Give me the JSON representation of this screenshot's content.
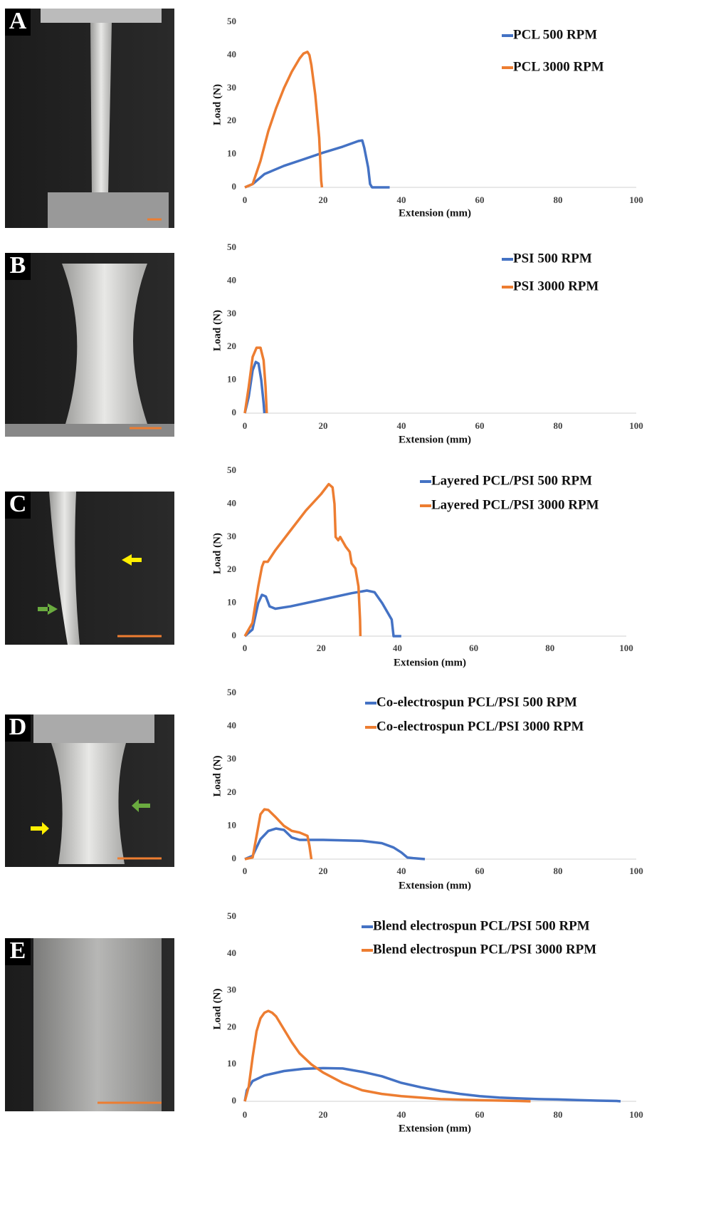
{
  "chart_data": [
    {
      "type": "line",
      "panel": "A",
      "xlabel": "Extension (mm)",
      "ylabel": "Load (N)",
      "xlim": [
        0,
        100
      ],
      "ylim": [
        0,
        50
      ],
      "xticks": [
        0,
        20,
        40,
        60,
        80,
        100
      ],
      "yticks": [
        0,
        10,
        20,
        30,
        40,
        50
      ],
      "series": [
        {
          "name": "PCL 500 RPM",
          "color": "#4472c4",
          "x": [
            0,
            2,
            5,
            10,
            15,
            20,
            25,
            29,
            30,
            30.5,
            31.5,
            32,
            32.5,
            37
          ],
          "values": [
            0,
            1,
            4,
            6.5,
            8.5,
            10.5,
            12.3,
            14,
            14.2,
            12,
            6,
            1,
            0,
            0
          ]
        },
        {
          "name": "PCL 3000 RPM",
          "color": "#ed7d31",
          "x": [
            0,
            2,
            4,
            6,
            8,
            10,
            12,
            14,
            15,
            16,
            16.5,
            17,
            18,
            19,
            19.5,
            19.7
          ],
          "values": [
            0,
            1,
            8,
            17,
            24,
            30,
            35,
            39,
            40.5,
            41,
            40,
            37,
            28,
            15,
            2,
            0
          ]
        }
      ]
    },
    {
      "type": "line",
      "panel": "B",
      "xlabel": "Extension (mm)",
      "ylabel": "Load (N)",
      "xlim": [
        0,
        100
      ],
      "ylim": [
        0,
        50
      ],
      "xticks": [
        0,
        20,
        40,
        60,
        80,
        100
      ],
      "yticks": [
        0,
        10,
        20,
        30,
        40,
        50
      ],
      "series": [
        {
          "name": "PSI 500 RPM",
          "color": "#4472c4",
          "x": [
            0,
            1,
            2,
            2.8,
            3.5,
            4.2,
            4.8,
            5
          ],
          "values": [
            0,
            5,
            13,
            15.5,
            15,
            10,
            3,
            0
          ]
        },
        {
          "name": "PSI 3000 RPM",
          "color": "#ed7d31",
          "x": [
            0,
            1,
            2,
            3,
            4,
            4.8,
            5.3,
            5.6
          ],
          "values": [
            0,
            8,
            17,
            19.8,
            19.8,
            16,
            8,
            0
          ]
        }
      ]
    },
    {
      "type": "line",
      "panel": "C",
      "xlabel": "Extension (mm)",
      "ylabel": "Load (N)",
      "xlim": [
        0,
        100
      ],
      "ylim": [
        0,
        50
      ],
      "xticks": [
        0,
        20,
        40,
        60,
        80,
        100
      ],
      "yticks": [
        0,
        10,
        20,
        30,
        40,
        50
      ],
      "series": [
        {
          "name": "Layered PCL/PSI 500 RPM",
          "color": "#4472c4",
          "x": [
            0,
            2,
            3.5,
            4.5,
            5.5,
            6.5,
            8,
            12,
            20,
            28,
            32,
            34,
            36,
            38.5,
            39,
            41
          ],
          "values": [
            0,
            2,
            10,
            12.5,
            12,
            9,
            8.3,
            9,
            11,
            13,
            13.8,
            13.3,
            10,
            5,
            0,
            0
          ]
        },
        {
          "name": "Layered PCL/PSI 3000 RPM",
          "color": "#ed7d31",
          "x": [
            0,
            2,
            3.5,
            4.5,
            5,
            6,
            8,
            12,
            16,
            20,
            22,
            23,
            23.5,
            23.8,
            24.5,
            25,
            26.5,
            27.5,
            28,
            29,
            29.8,
            30.2,
            30.3
          ],
          "values": [
            0,
            4,
            15,
            21,
            22.5,
            22.5,
            26,
            32,
            38,
            43,
            46,
            45,
            40,
            30,
            29,
            30,
            27,
            25.5,
            22,
            20.5,
            15,
            5,
            0
          ]
        }
      ]
    },
    {
      "type": "line",
      "panel": "D",
      "xlabel": "Extension (mm)",
      "ylabel": "Load (N)",
      "xlim": [
        0,
        100
      ],
      "ylim": [
        0,
        50
      ],
      "xticks": [
        0,
        20,
        40,
        60,
        80,
        100
      ],
      "yticks": [
        0,
        10,
        20,
        30,
        40,
        50
      ],
      "series": [
        {
          "name": "Co-electrospun PCL/PSI 500 RPM",
          "color": "#4472c4",
          "x": [
            0,
            2,
            4,
            6,
            8,
            10,
            12,
            14,
            20,
            30,
            35,
            38,
            40,
            41.5,
            43,
            46
          ],
          "values": [
            0,
            1,
            6,
            8.5,
            9.2,
            8.8,
            6.5,
            5.8,
            5.8,
            5.5,
            4.8,
            3.5,
            2,
            0.5,
            0.3,
            0
          ]
        },
        {
          "name": "Co-electrospun PCL/PSI 3000 RPM",
          "color": "#ed7d31",
          "x": [
            0,
            2,
            3,
            4,
            5,
            6,
            8,
            10,
            12,
            14,
            16,
            16.5,
            17
          ],
          "values": [
            0,
            0.5,
            7,
            13.5,
            15,
            14.8,
            12.5,
            10,
            8.5,
            8,
            7,
            4,
            0
          ]
        }
      ]
    },
    {
      "type": "line",
      "panel": "E",
      "xlabel": "Extension (mm)",
      "ylabel": "Load (N)",
      "xlim": [
        0,
        100
      ],
      "ylim": [
        0,
        50
      ],
      "xticks": [
        0,
        20,
        40,
        60,
        80,
        100
      ],
      "yticks": [
        0,
        10,
        20,
        30,
        40,
        50
      ],
      "series": [
        {
          "name": "Blend electrospun PCL/PSI 500 RPM",
          "color": "#4472c4",
          "x": [
            0,
            0.5,
            2,
            5,
            10,
            15,
            20,
            25,
            30,
            35,
            40,
            45,
            50,
            55,
            60,
            65,
            70,
            75,
            80,
            85,
            90,
            95,
            96
          ],
          "values": [
            0,
            3,
            5.5,
            7,
            8.2,
            8.8,
            9,
            8.9,
            8,
            6.8,
            5,
            3.8,
            2.8,
            2,
            1.4,
            1,
            0.8,
            0.6,
            0.5,
            0.35,
            0.2,
            0.1,
            0
          ]
        },
        {
          "name": "Blend electrospun PCL/PSI 3000 RPM",
          "color": "#ed7d31",
          "x": [
            0,
            1,
            2,
            3,
            4,
            5,
            6,
            7,
            8,
            10,
            12,
            14,
            17,
            20,
            25,
            30,
            35,
            40,
            50,
            60,
            70,
            73
          ],
          "values": [
            0,
            4,
            12,
            19,
            22.5,
            24,
            24.5,
            24,
            23,
            19.5,
            16,
            13,
            10,
            7.8,
            5,
            3,
            2,
            1.4,
            0.6,
            0.3,
            0.1,
            0
          ]
        }
      ]
    }
  ]
}
